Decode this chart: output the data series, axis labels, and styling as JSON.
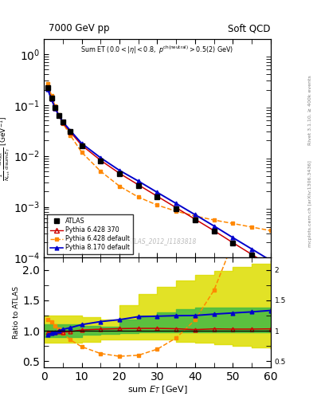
{
  "title_left": "7000 GeV pp",
  "title_right": "Soft QCD",
  "annotation": "Sum ET (0.0 < |\\eta| < 0.8, p^{ch(neutral)} > 0.5(2) GeV)",
  "watermark": "ATLAS_2012_I1183818",
  "right_label_top": "Rivet 3.1.10, ≥ 400k events",
  "right_label_bottom": "mcplots.cern.ch [arXiv:1306.3436]",
  "xlabel": "sum E_T [GeV]",
  "xlim": [
    0,
    60
  ],
  "ylim_main": [
    0.0001,
    2.0
  ],
  "ylim_ratio": [
    0.4,
    2.2
  ],
  "atlas_x": [
    1,
    2,
    3,
    4,
    5,
    7,
    10,
    15,
    20,
    25,
    30,
    35,
    40,
    45,
    50,
    55,
    60
  ],
  "atlas_y": [
    0.22,
    0.135,
    0.088,
    0.062,
    0.046,
    0.03,
    0.016,
    0.008,
    0.0044,
    0.0026,
    0.00155,
    0.00093,
    0.00056,
    0.00033,
    0.000192,
    0.000113,
    6.6e-05
  ],
  "p6_370_x": [
    1,
    2,
    3,
    4,
    5,
    7,
    10,
    15,
    20,
    25,
    30,
    35,
    40,
    45,
    50,
    55,
    60
  ],
  "p6_370_y": [
    0.215,
    0.132,
    0.086,
    0.061,
    0.045,
    0.0295,
    0.0162,
    0.0082,
    0.00455,
    0.0027,
    0.00161,
    0.00096,
    0.00057,
    0.00034,
    0.000197,
    0.000116,
    6.8e-05
  ],
  "p6_def_x": [
    1,
    2,
    3,
    4,
    5,
    7,
    10,
    15,
    20,
    25,
    30,
    35,
    40,
    45,
    50,
    55,
    60
  ],
  "p6_def_y": [
    0.26,
    0.155,
    0.095,
    0.064,
    0.044,
    0.0255,
    0.0118,
    0.005,
    0.00255,
    0.00155,
    0.00108,
    0.00082,
    0.00066,
    0.00055,
    0.00047,
    0.0004,
    0.00034
  ],
  "p8_def_x": [
    1,
    2,
    3,
    4,
    5,
    7,
    10,
    15,
    20,
    25,
    30,
    35,
    40,
    45,
    50,
    55,
    60
  ],
  "p8_def_y": [
    0.205,
    0.13,
    0.086,
    0.062,
    0.047,
    0.0315,
    0.0176,
    0.0092,
    0.0052,
    0.0032,
    0.00192,
    0.00116,
    0.0007,
    0.00042,
    0.000248,
    0.000148,
    8.8e-05
  ],
  "green_band_x": [
    0,
    5,
    10,
    15,
    20,
    25,
    30,
    35,
    40,
    45,
    50,
    55,
    60
  ],
  "green_band_lo": [
    0.9,
    0.9,
    0.93,
    0.95,
    0.96,
    0.97,
    0.97,
    0.97,
    0.97,
    0.97,
    0.97,
    0.97,
    0.97
  ],
  "green_band_hi": [
    1.1,
    1.1,
    1.08,
    1.07,
    1.18,
    1.25,
    1.3,
    1.35,
    1.38,
    1.38,
    1.38,
    1.38,
    1.38
  ],
  "yellow_band_x": [
    0,
    5,
    10,
    15,
    20,
    25,
    30,
    35,
    40,
    45,
    50,
    55,
    60
  ],
  "yellow_band_lo": [
    0.8,
    0.8,
    0.82,
    0.85,
    0.85,
    0.85,
    0.85,
    0.82,
    0.8,
    0.78,
    0.75,
    0.72,
    0.7
  ],
  "yellow_band_hi": [
    1.25,
    1.25,
    1.22,
    1.18,
    1.42,
    1.6,
    1.72,
    1.82,
    1.92,
    1.98,
    2.05,
    2.1,
    2.15
  ],
  "atlas_color": "#000000",
  "p6_370_color": "#cc0000",
  "p6_def_color": "#ff8800",
  "p8_def_color": "#0000cc",
  "green_color": "#44bb44",
  "yellow_color": "#dddd00"
}
